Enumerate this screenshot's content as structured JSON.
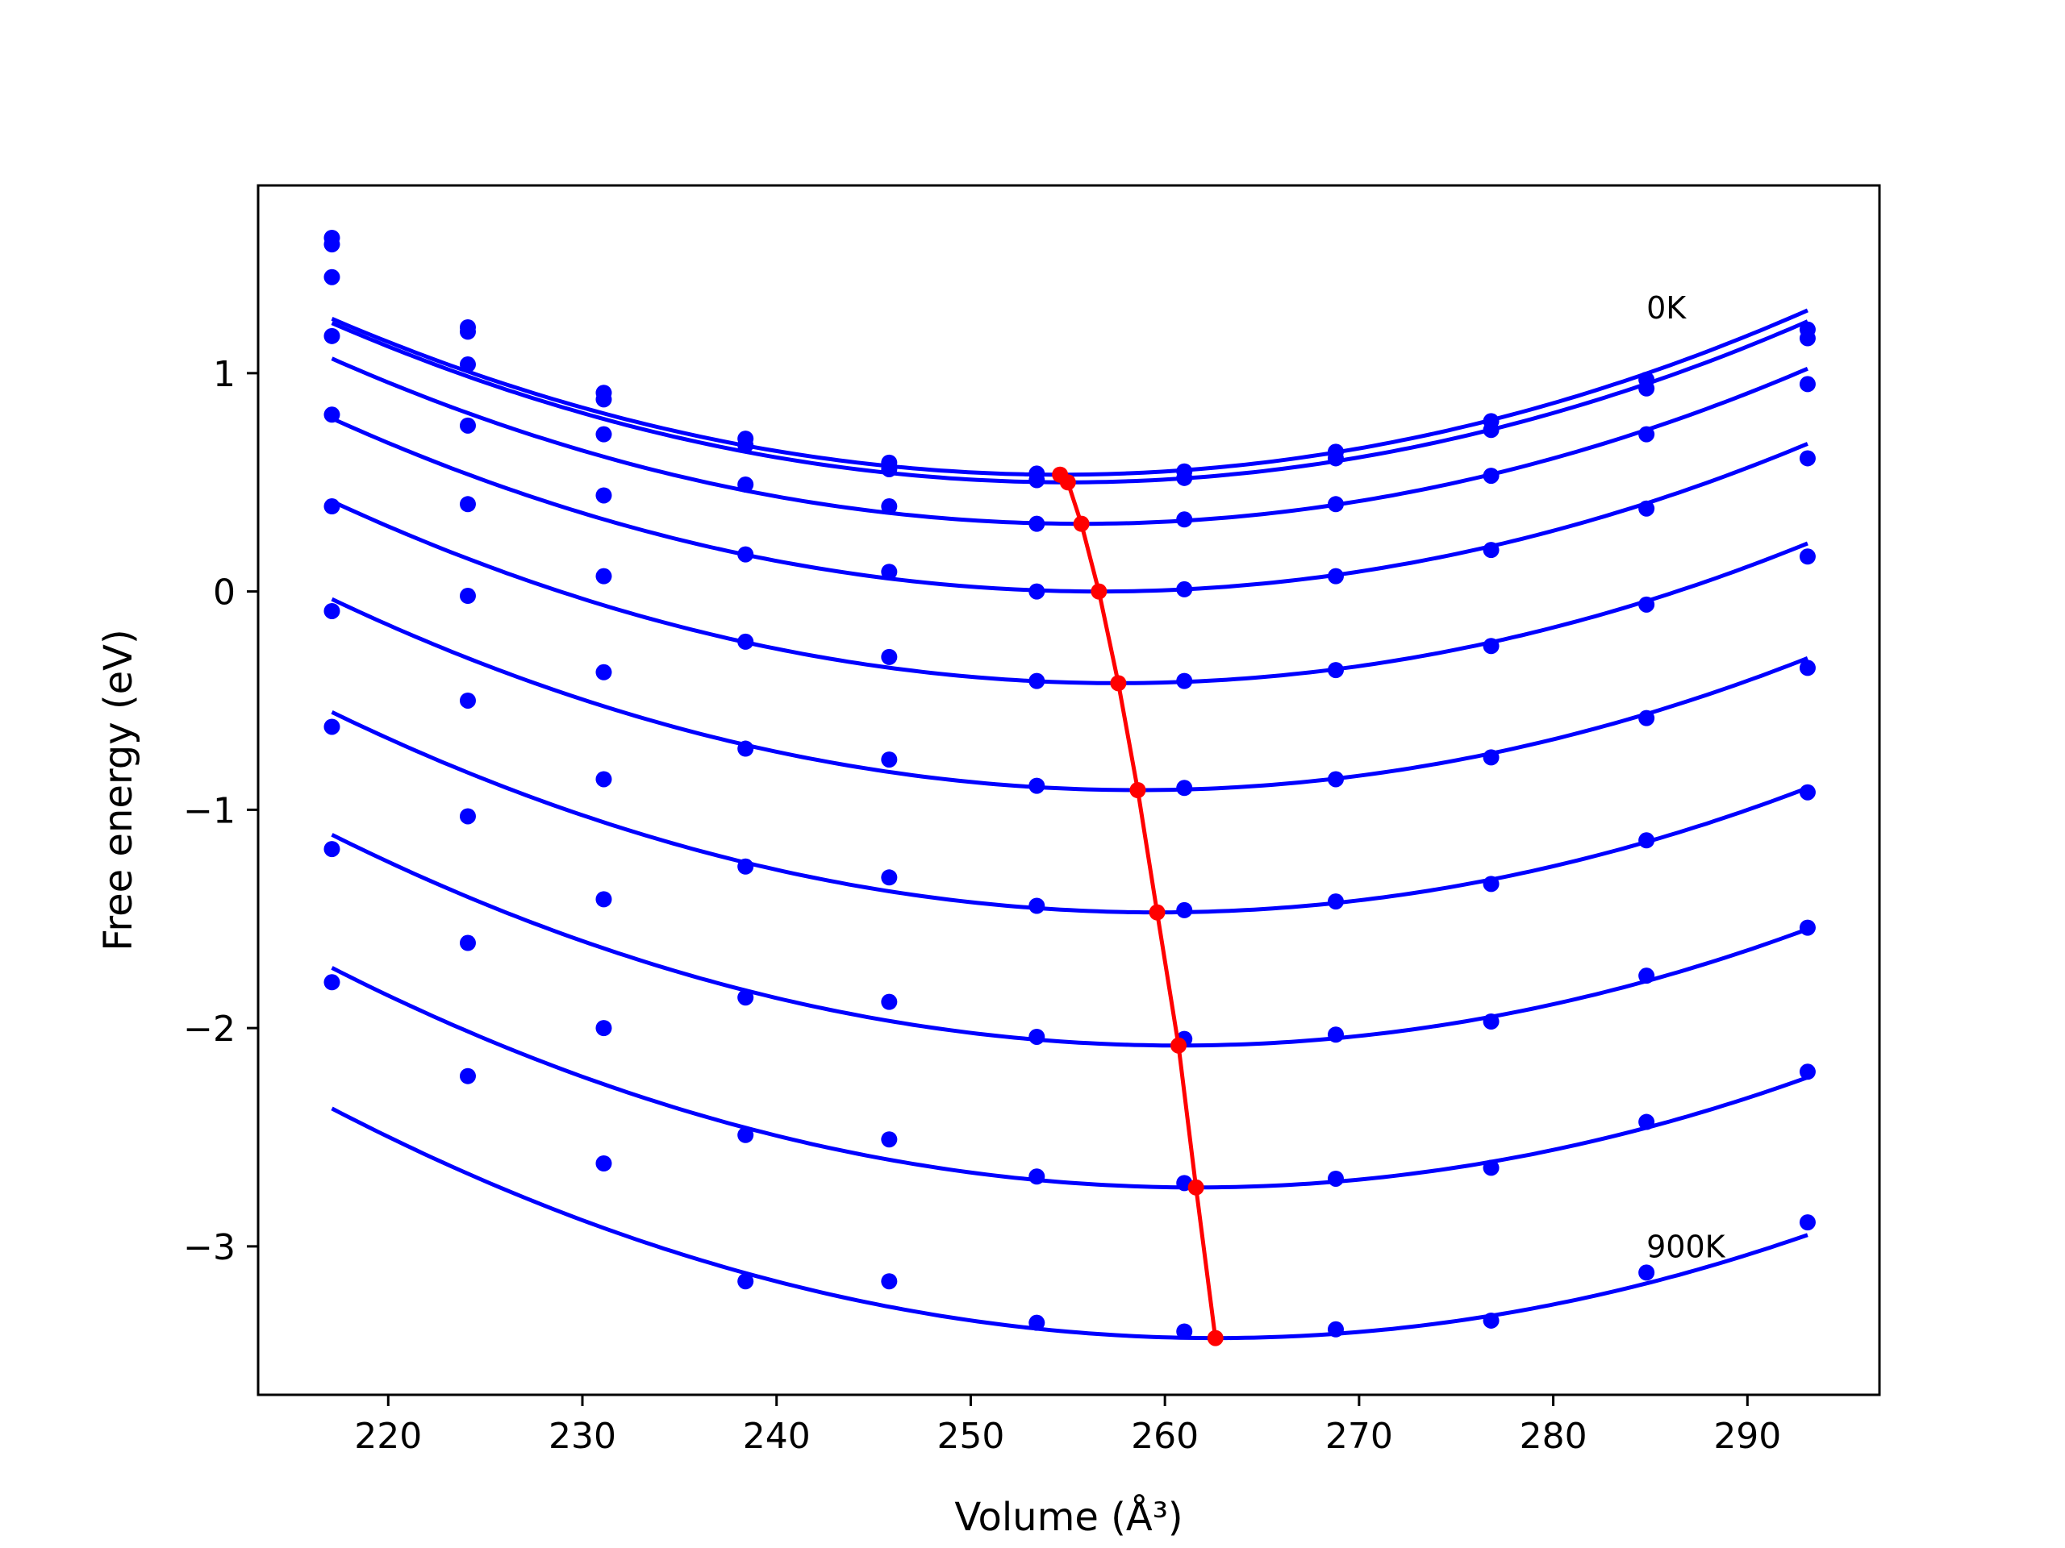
{
  "chart_data": {
    "type": "scatter",
    "xlabel": "Volume (Å³)",
    "ylabel": "Free energy (eV)",
    "xlim": [
      213.3,
      296.8
    ],
    "ylim": [
      -3.68,
      1.86
    ],
    "xticks": [
      220,
      230,
      240,
      250,
      260,
      270,
      280,
      290
    ],
    "yticks": [
      1,
      0,
      -1,
      -2,
      -3
    ],
    "ytick_labels": [
      "1",
      "0",
      "−1",
      "−2",
      "−3"
    ],
    "grid": false,
    "legend": "none",
    "colors": {
      "fits": "#0000ff",
      "points": "#0000ff",
      "minima": "#ff0000"
    },
    "x": [
      217.1,
      224.1,
      231.1,
      238.4,
      245.8,
      253.4,
      261.0,
      268.8,
      276.8,
      284.8,
      293.1
    ],
    "series": [
      {
        "points": [
          1.62,
          1.21,
          0.91,
          0.7,
          0.59,
          0.54,
          0.55,
          0.64,
          0.78,
          0.97,
          1.2
        ],
        "fit": {
          "a": 0.000508,
          "vmin": 254.6,
          "fmin": 0.535
        }
      },
      {
        "points": [
          1.59,
          1.19,
          0.88,
          0.67,
          0.56,
          0.51,
          0.52,
          0.61,
          0.74,
          0.93,
          1.16
        ],
        "fit": {
          "a": 0.000508,
          "vmin": 255.0,
          "fmin": 0.5
        }
      },
      {
        "points": [
          1.44,
          1.04,
          0.72,
          0.49,
          0.39,
          0.31,
          0.33,
          0.4,
          0.53,
          0.72,
          0.95
        ],
        "fit": {
          "a": 0.000508,
          "vmin": 255.7,
          "fmin": 0.31
        }
      },
      {
        "points": [
          1.17,
          0.76,
          0.44,
          0.17,
          0.09,
          0.0,
          0.01,
          0.07,
          0.19,
          0.38,
          0.61
        ],
        "fit": {
          "a": 0.000508,
          "vmin": 256.6,
          "fmin": 0.0
        }
      },
      {
        "points": [
          0.81,
          0.4,
          0.07,
          -0.23,
          -0.3,
          -0.41,
          -0.41,
          -0.36,
          -0.25,
          -0.06,
          0.16
        ],
        "fit": {
          "a": 0.000508,
          "vmin": 257.6,
          "fmin": -0.42
        }
      },
      {
        "points": [
          0.39,
          -0.02,
          -0.37,
          -0.72,
          -0.77,
          -0.89,
          -0.9,
          -0.86,
          -0.76,
          -0.58,
          -0.35
        ],
        "fit": {
          "a": 0.000508,
          "vmin": 258.6,
          "fmin": -0.91
        }
      },
      {
        "points": [
          -0.09,
          -0.5,
          -0.86,
          -1.26,
          -1.31,
          -1.44,
          -1.46,
          -1.42,
          -1.34,
          -1.14,
          -0.92
        ],
        "fit": {
          "a": 0.000508,
          "vmin": 259.6,
          "fmin": -1.47
        }
      },
      {
        "points": [
          -0.62,
          -1.03,
          -1.41,
          -1.86,
          -1.88,
          -2.04,
          -2.05,
          -2.03,
          -1.97,
          -1.76,
          -1.54
        ],
        "fit": {
          "a": 0.000508,
          "vmin": 260.7,
          "fmin": -2.08
        }
      },
      {
        "points": [
          -1.18,
          -1.61,
          -2.0,
          -2.49,
          -2.51,
          -2.68,
          -2.71,
          -2.69,
          -2.64,
          -2.43,
          -2.2
        ],
        "fit": {
          "a": 0.000508,
          "vmin": 261.6,
          "fmin": -2.73
        }
      },
      {
        "points": [
          -1.79,
          -2.22,
          -2.62,
          -3.16,
          -3.16,
          -3.35,
          -3.39,
          -3.38,
          -3.34,
          -3.12,
          -2.89
        ],
        "fit": {
          "a": 0.000508,
          "vmin": 262.6,
          "fmin": -3.42
        }
      }
    ],
    "minima": {
      "x": [
        254.6,
        255.0,
        255.7,
        256.6,
        257.6,
        258.6,
        259.6,
        260.7,
        261.6,
        262.6
      ],
      "y": [
        0.535,
        0.5,
        0.31,
        0.0,
        -0.42,
        -0.91,
        -1.47,
        -2.08,
        -2.73,
        -3.42
      ]
    },
    "annotations": [
      {
        "text": "0K",
        "x": 284.8,
        "y": 1.25
      },
      {
        "text": "900K",
        "x": 284.8,
        "y": -3.05
      }
    ]
  }
}
